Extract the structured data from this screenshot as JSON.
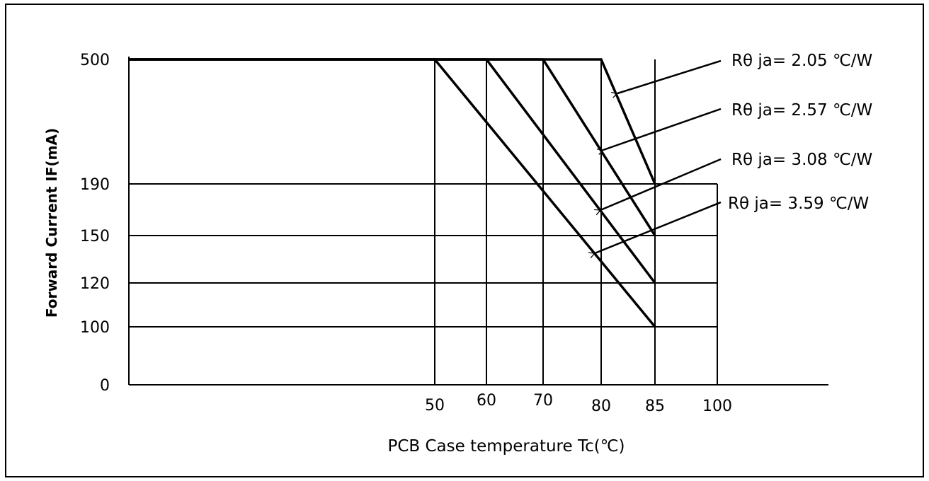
{
  "chart_data": {
    "type": "line",
    "title": "",
    "xlabel": "PCB Case temperature Tc(℃)",
    "ylabel": "Forward Current IF(mA)",
    "x_ticks": [
      50,
      60,
      70,
      80,
      85,
      100
    ],
    "y_ticks": [
      0,
      100,
      120,
      150,
      190,
      500
    ],
    "grid": true,
    "series": [
      {
        "name": "Rθ ja= 2.05 ℃/W",
        "points": [
          [
            25,
            500
          ],
          [
            80,
            500
          ],
          [
            85,
            190
          ]
        ]
      },
      {
        "name": "Rθ ja= 2.57 ℃/W",
        "points": [
          [
            25,
            500
          ],
          [
            70,
            500
          ],
          [
            85,
            150
          ]
        ]
      },
      {
        "name": "Rθ ja= 3.08 ℃/W",
        "points": [
          [
            25,
            500
          ],
          [
            60,
            500
          ],
          [
            85,
            120
          ]
        ]
      },
      {
        "name": "Rθ ja= 3.59 ℃/W",
        "points": [
          [
            25,
            500
          ],
          [
            50,
            500
          ],
          [
            85,
            100
          ]
        ]
      }
    ],
    "colors": {
      "line": "#000000",
      "background": "#ffffff"
    }
  }
}
